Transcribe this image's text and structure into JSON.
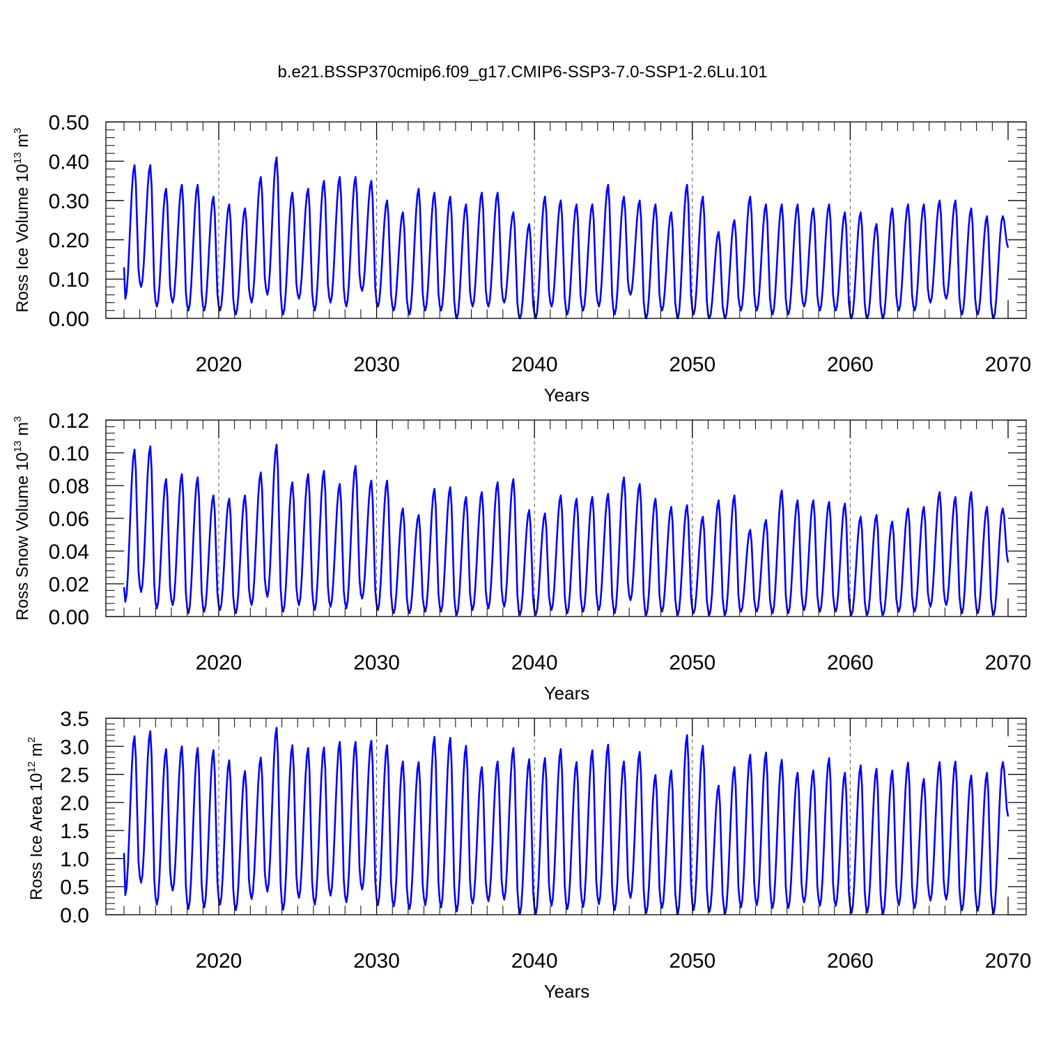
{
  "title": "b.e21.BSSP370cmip6.f09_g17.CMIP6-SSP3-7.0-SSP1-2.6Lu.101",
  "colors": {
    "line": "#0000ff",
    "axis": "#000000",
    "grid": "#555555"
  },
  "chart_data": [
    {
      "type": "line",
      "ylabel": {
        "text": "Ross Ice Volume 10",
        "sup": "13",
        "unit": " m",
        "unit_sup": "3"
      },
      "xlabel": "Years",
      "xlim": [
        2013.9,
        2070.2
      ],
      "ylim": [
        0,
        0.5
      ],
      "yticks": [
        "0.00",
        "0.10",
        "0.20",
        "0.30",
        "0.40",
        "0.50"
      ],
      "xticks": [
        "2020",
        "2030",
        "2040",
        "2050",
        "2060",
        "2070"
      ],
      "grid": "vertical-dashed",
      "series": [
        {
          "name": "Ross Ice Volume",
          "year_start": 2014,
          "year_end": 2069,
          "start_value": 0.13,
          "end_value": 0.18,
          "annual_max": [
            0.39,
            0.39,
            0.33,
            0.34,
            0.34,
            0.31,
            0.29,
            0.28,
            0.36,
            0.41,
            0.32,
            0.33,
            0.35,
            0.36,
            0.36,
            0.35,
            0.3,
            0.27,
            0.33,
            0.32,
            0.31,
            0.29,
            0.32,
            0.32,
            0.27,
            0.24,
            0.31,
            0.3,
            0.29,
            0.29,
            0.34,
            0.31,
            0.3,
            0.29,
            0.27,
            0.34,
            0.31,
            0.22,
            0.25,
            0.31,
            0.29,
            0.29,
            0.29,
            0.28,
            0.29,
            0.27,
            0.27,
            0.24,
            0.28,
            0.29,
            0.29,
            0.3,
            0.3,
            0.28,
            0.26,
            0.26
          ],
          "annual_min": [
            0.05,
            0.08,
            0.03,
            0.04,
            0.02,
            0.02,
            0.02,
            0.01,
            0.04,
            0.06,
            0.01,
            0.05,
            0.02,
            0.04,
            0.03,
            0.07,
            0.03,
            0.02,
            0.01,
            0.02,
            0.02,
            0.0,
            0.03,
            0.03,
            0.04,
            0.0,
            0.0,
            0.03,
            0.01,
            0.02,
            0.03,
            0.01,
            0.06,
            0.0,
            0.02,
            0.0,
            0.01,
            0.0,
            0.0,
            0.02,
            0.02,
            0.01,
            0.01,
            0.03,
            0.02,
            0.02,
            0.0,
            0.0,
            0.0,
            0.02,
            0.02,
            0.04,
            0.05,
            0.01,
            0.01,
            0.0
          ]
        }
      ]
    },
    {
      "type": "line",
      "ylabel": {
        "text": "Ross Snow Volume 10",
        "sup": "13",
        "unit": " m",
        "unit_sup": "3"
      },
      "xlabel": "Years",
      "xlim": [
        2013.9,
        2070.2
      ],
      "ylim": [
        0,
        0.12
      ],
      "yticks": [
        "0.00",
        "0.02",
        "0.04",
        "0.06",
        "0.08",
        "0.10",
        "0.12"
      ],
      "xticks": [
        "2020",
        "2030",
        "2040",
        "2050",
        "2060",
        "2070"
      ],
      "grid": "vertical-dashed",
      "series": [
        {
          "name": "Ross Snow Volume",
          "year_start": 2014,
          "year_end": 2069,
          "start_value": 0.018,
          "end_value": 0.033,
          "annual_max": [
            0.102,
            0.104,
            0.084,
            0.087,
            0.085,
            0.074,
            0.072,
            0.074,
            0.088,
            0.105,
            0.082,
            0.087,
            0.089,
            0.081,
            0.092,
            0.083,
            0.083,
            0.066,
            0.062,
            0.078,
            0.079,
            0.073,
            0.076,
            0.082,
            0.084,
            0.065,
            0.063,
            0.074,
            0.072,
            0.073,
            0.075,
            0.085,
            0.081,
            0.072,
            0.067,
            0.068,
            0.061,
            0.071,
            0.074,
            0.053,
            0.059,
            0.077,
            0.071,
            0.071,
            0.07,
            0.069,
            0.061,
            0.062,
            0.058,
            0.066,
            0.067,
            0.076,
            0.073,
            0.076,
            0.067,
            0.066
          ],
          "annual_min": [
            0.009,
            0.015,
            0.005,
            0.007,
            0.002,
            0.003,
            0.004,
            0.002,
            0.007,
            0.012,
            0.003,
            0.007,
            0.004,
            0.006,
            0.005,
            0.011,
            0.004,
            0.002,
            0.002,
            0.003,
            0.003,
            0.001,
            0.004,
            0.005,
            0.006,
            0.001,
            0.001,
            0.004,
            0.002,
            0.003,
            0.004,
            0.002,
            0.01,
            0.001,
            0.003,
            0.001,
            0.002,
            0.001,
            0.001,
            0.003,
            0.003,
            0.002,
            0.002,
            0.004,
            0.003,
            0.003,
            0.001,
            0.001,
            0.001,
            0.003,
            0.003,
            0.006,
            0.007,
            0.002,
            0.002,
            0.001
          ]
        }
      ]
    },
    {
      "type": "line",
      "ylabel": {
        "text": "Ross Ice Area 10",
        "sup": "12",
        "unit": " m",
        "unit_sup": "2"
      },
      "xlabel": "Years",
      "xlim": [
        2013.9,
        2070.2
      ],
      "ylim": [
        0,
        3.5
      ],
      "yticks": [
        "0.0",
        "0.5",
        "1.0",
        "1.5",
        "2.0",
        "2.5",
        "3.0",
        "3.5"
      ],
      "xticks": [
        "2020",
        "2030",
        "2040",
        "2050",
        "2060",
        "2070"
      ],
      "grid": "vertical-dashed",
      "series": [
        {
          "name": "Ross Ice Area",
          "year_start": 2014,
          "year_end": 2069,
          "start_value": 1.1,
          "end_value": 1.75,
          "annual_max": [
            3.18,
            3.27,
            2.95,
            3.0,
            2.97,
            2.93,
            2.75,
            2.56,
            2.8,
            3.33,
            3.02,
            2.97,
            2.98,
            3.08,
            3.08,
            3.1,
            3.02,
            2.73,
            2.72,
            3.17,
            3.15,
            3.01,
            2.63,
            2.73,
            2.97,
            2.77,
            2.79,
            2.95,
            2.72,
            2.93,
            3.03,
            2.73,
            2.9,
            2.49,
            2.57,
            3.2,
            3.01,
            2.3,
            2.63,
            2.85,
            2.89,
            2.76,
            2.53,
            2.57,
            2.79,
            2.53,
            2.66,
            2.6,
            2.57,
            2.71,
            2.42,
            2.72,
            2.73,
            2.48,
            2.53,
            2.72
          ],
          "annual_min": [
            0.35,
            0.57,
            0.18,
            0.43,
            0.1,
            0.13,
            0.18,
            0.08,
            0.28,
            0.41,
            0.09,
            0.3,
            0.18,
            0.34,
            0.22,
            0.45,
            0.17,
            0.15,
            0.1,
            0.17,
            0.13,
            0.06,
            0.2,
            0.24,
            0.27,
            0.02,
            0.01,
            0.16,
            0.1,
            0.14,
            0.19,
            0.08,
            0.3,
            0.03,
            0.12,
            0.01,
            0.08,
            0.05,
            0.02,
            0.13,
            0.17,
            0.12,
            0.12,
            0.22,
            0.16,
            0.16,
            0.03,
            0.04,
            0.01,
            0.17,
            0.12,
            0.25,
            0.27,
            0.08,
            0.07,
            0.02
          ]
        }
      ]
    }
  ]
}
